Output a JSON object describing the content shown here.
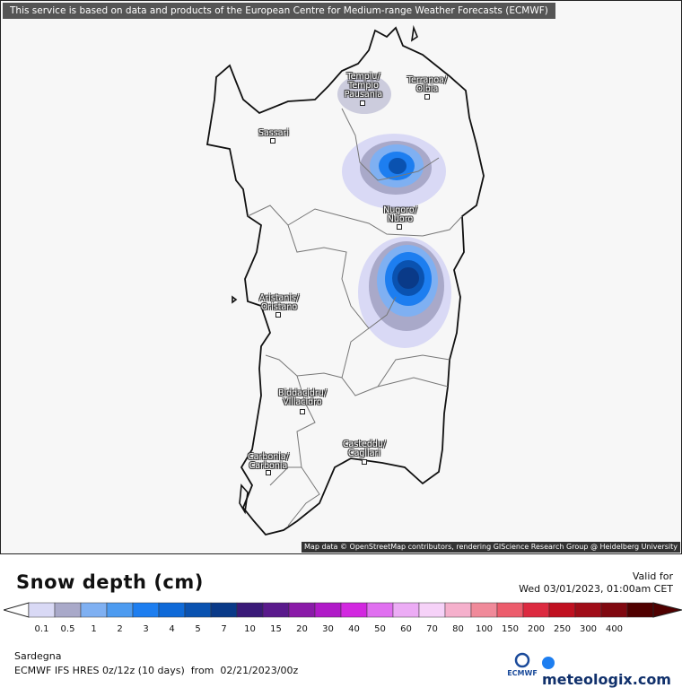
{
  "banner": "This service is based on data and products of the European Centre for Medium-range Weather Forecasts (ECMWF)",
  "attribution": "Map data © OpenStreetMap contributors, rendering GIScience Research Group @ Heidelberg University",
  "cities": [
    {
      "label": "Tempiu/\nTempio\nPausania"
    },
    {
      "label": "Terranoa/\nOlbia"
    },
    {
      "label": "Sassari"
    },
    {
      "label": "Nugoro/\nNuoro"
    },
    {
      "label": "Aristanis/\nOristano"
    },
    {
      "label": "Biddacidru/\nVillacidro"
    },
    {
      "label": "Casteddu/\nCagliari"
    },
    {
      "label": "Carbonia/\nCarbonia"
    }
  ],
  "legend": {
    "title": "Snow depth (cm)",
    "valid_label": "Valid for",
    "valid_date": "Wed 03/01/2023, 01:00am CET",
    "ticks": [
      "0.1",
      "0.5",
      "1",
      "2",
      "3",
      "4",
      "5",
      "7",
      "10",
      "15",
      "20",
      "30",
      "40",
      "50",
      "60",
      "70",
      "80",
      "100",
      "150",
      "200",
      "250",
      "300",
      "400"
    ],
    "colors": [
      "#d9d9f5",
      "#a9a9c9",
      "#7fb0f2",
      "#4d9bf0",
      "#1d7ef0",
      "#0f6ad8",
      "#0a52b0",
      "#0a3a88",
      "#3a1a78",
      "#5a1a8c",
      "#8a1aa8",
      "#b01ac8",
      "#d228e0",
      "#e070f0",
      "#ecacf5",
      "#f6d2f8",
      "#f5b0cc",
      "#f08a9a",
      "#ec5c6c",
      "#dc2a40",
      "#c01020",
      "#a00c18",
      "#800810",
      "#500000"
    ]
  },
  "footer": {
    "region": "Sardegna",
    "model": "ECMWF IFS HRES 0z/12z (10 days)  from  02/21/2023/00z",
    "ecmwf_logo": "ECMWF",
    "brand": "meteologix.com"
  }
}
